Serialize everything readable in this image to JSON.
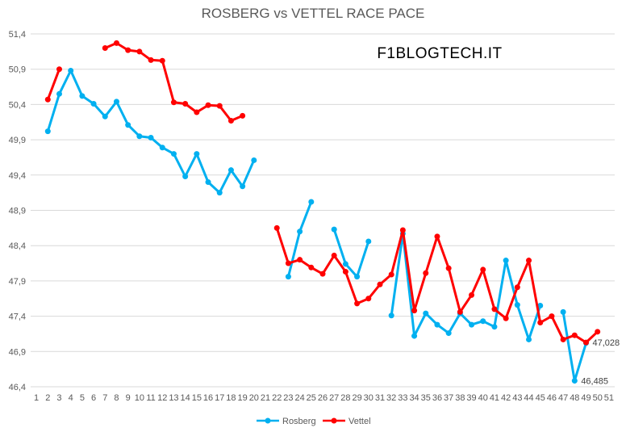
{
  "chart_data": {
    "type": "line",
    "title": "ROSBERG vs VETTEL RACE PACE",
    "annotation": "F1BLOGTECH.IT",
    "ylim": [
      46.4,
      51.4
    ],
    "yticks": [
      "51,4",
      "50,9",
      "50,4",
      "49,9",
      "49,4",
      "48,9",
      "48,4",
      "47,9",
      "47,4",
      "46,9",
      "46,4"
    ],
    "ytick_values": [
      51.4,
      50.9,
      50.4,
      49.9,
      49.4,
      48.9,
      48.4,
      47.9,
      47.4,
      46.9,
      46.4
    ],
    "categories": [
      "1",
      "2",
      "3",
      "4",
      "5",
      "6",
      "7",
      "8",
      "9",
      "10",
      "11",
      "12",
      "13",
      "14",
      "15",
      "16",
      "17",
      "18",
      "19",
      "20",
      "21",
      "22",
      "23",
      "24",
      "25",
      "26",
      "27",
      "28",
      "29",
      "30",
      "31",
      "32",
      "33",
      "34",
      "35",
      "36",
      "37",
      "38",
      "39",
      "40",
      "41",
      "42",
      "43",
      "44",
      "45",
      "46",
      "47",
      "48",
      "49",
      "50",
      "51"
    ],
    "legend_position": "bottom",
    "grid": true,
    "series": [
      {
        "name": "Rosberg",
        "color": "#00b0f0",
        "values": [
          null,
          50.02,
          50.55,
          50.88,
          50.52,
          50.41,
          50.23,
          50.44,
          50.11,
          49.95,
          49.93,
          49.79,
          49.7,
          49.38,
          49.7,
          49.3,
          49.15,
          49.47,
          49.24,
          49.61,
          null,
          null,
          47.96,
          48.6,
          49.02,
          null,
          48.63,
          48.14,
          47.96,
          48.46,
          null,
          47.41,
          48.57,
          47.12,
          47.44,
          47.28,
          47.16,
          47.44,
          47.28,
          47.33,
          47.25,
          48.19,
          47.56,
          47.07,
          47.55,
          null,
          47.46,
          46.485,
          47.02,
          null,
          null
        ]
      },
      {
        "name": "Vettel",
        "color": "#ff0000",
        "values": [
          null,
          50.47,
          50.9,
          null,
          null,
          null,
          51.2,
          51.27,
          51.17,
          51.15,
          51.03,
          51.02,
          50.43,
          50.41,
          50.29,
          50.39,
          50.38,
          50.17,
          50.24,
          null,
          null,
          48.65,
          48.15,
          48.2,
          48.09,
          48.0,
          48.26,
          48.03,
          47.58,
          47.65,
          47.85,
          47.99,
          48.62,
          47.48,
          48.01,
          48.53,
          48.08,
          47.46,
          47.7,
          48.06,
          47.5,
          47.37,
          47.81,
          48.19,
          47.31,
          47.4,
          47.07,
          47.13,
          47.028,
          47.18,
          null
        ]
      }
    ],
    "data_labels": [
      {
        "series": "Rosberg",
        "category": "48",
        "text": "46,485"
      },
      {
        "series": "Vettel",
        "category": "49",
        "text": "47,028"
      }
    ]
  }
}
